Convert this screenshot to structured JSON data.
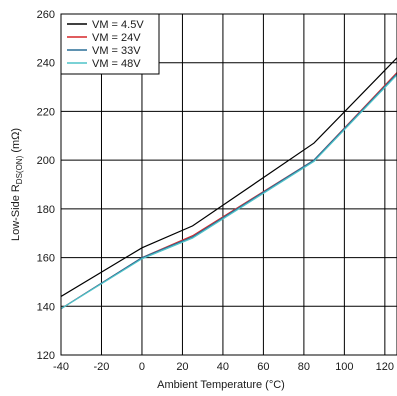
{
  "chart_data": {
    "type": "line",
    "title": "",
    "xlabel": "Ambient Temperature (°C)",
    "ylabel_main": "Low-Side R",
    "ylabel_sub": "DS(ON)",
    "ylabel_unit": " (mΩ)",
    "xlim": [
      -40,
      126
    ],
    "ylim": [
      120,
      260
    ],
    "x_ticks": [
      -40,
      -20,
      0,
      20,
      40,
      60,
      80,
      100,
      120
    ],
    "y_ticks": [
      120,
      140,
      160,
      180,
      200,
      220,
      240,
      260
    ],
    "grid": true,
    "legend_position": "top-left",
    "series": [
      {
        "name": "VM = 4.5V",
        "color": "#000000",
        "x": [
          -40,
          0,
          25,
          85,
          126
        ],
        "y": [
          144,
          164,
          173,
          207,
          242
        ]
      },
      {
        "name": "VM = 24V",
        "color": "#d62728",
        "x": [
          -40,
          0,
          25,
          85,
          126
        ],
        "y": [
          139,
          160,
          169,
          200,
          236
        ]
      },
      {
        "name": "VM = 33V",
        "color": "#2a6f97",
        "x": [
          -40,
          0,
          25,
          85,
          126
        ],
        "y": [
          139,
          160,
          168.5,
          200,
          235.5
        ]
      },
      {
        "name": "VM = 48V",
        "color": "#4fc3c8",
        "x": [
          -40,
          0,
          25,
          85,
          126
        ],
        "y": [
          139,
          159.5,
          168,
          199.5,
          235
        ]
      }
    ]
  }
}
